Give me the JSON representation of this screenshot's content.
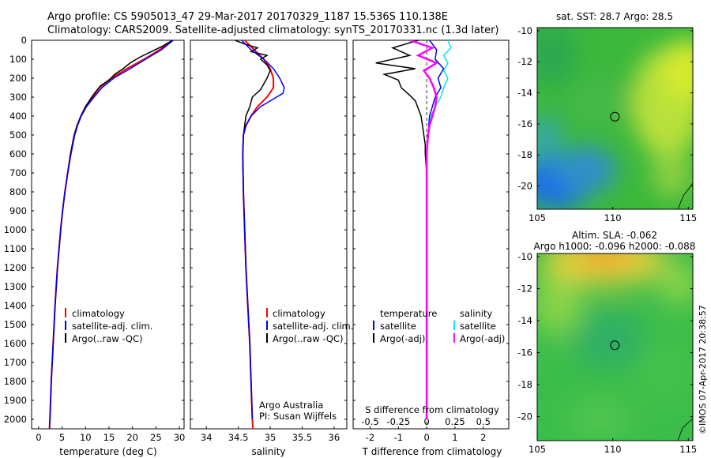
{
  "header": {
    "line1": "Argo profile: CS 5905013_47 29-Mar-2017 20170329_1187 15.536S 110.138E",
    "line2": "Climatology: CARS2009. Satellite-adjusted climatology: synTS_20170331.nc (1.3d later)"
  },
  "colors": {
    "climatology": "#ff0000",
    "satellite": "#0000ff",
    "argo": "#000000",
    "sat_salinity": "#00e5ee",
    "argo_salinity": "#ff00ff"
  },
  "depth_ticks": [
    "0",
    "100",
    "200",
    "300",
    "400",
    "500",
    "600",
    "700",
    "800",
    "900",
    "1000",
    "1100",
    "1200",
    "1300",
    "1400",
    "1500",
    "1600",
    "1700",
    "1800",
    "1900",
    "2000"
  ],
  "chart_data": [
    {
      "type": "line",
      "name": "temperature-profile",
      "xlabel": "temperature (deg C)",
      "x_ticks": [
        "0",
        "5",
        "10",
        "15",
        "20",
        "25",
        "30"
      ],
      "xlim": [
        -1.5,
        31
      ],
      "ylim": [
        2050,
        0
      ],
      "legend": [
        "climatology",
        "satellite-adj. clim.",
        "Argo(..raw -QC)"
      ],
      "series": [
        {
          "name": "climatology",
          "depth": [
            0,
            50,
            100,
            150,
            200,
            250,
            300,
            350,
            400,
            450,
            500,
            600,
            700,
            800,
            900,
            1000,
            1200,
            1400,
            1600,
            1800,
            2000,
            2050
          ],
          "values": [
            28.5,
            25.8,
            22.5,
            18.8,
            15.5,
            13.0,
            11.5,
            10.0,
            9.0,
            8.2,
            7.6,
            6.8,
            6.2,
            5.6,
            5.1,
            4.7,
            4.0,
            3.5,
            3.1,
            2.7,
            2.4,
            2.3
          ]
        },
        {
          "name": "satellite-adj. clim.",
          "depth": [
            0,
            50,
            100,
            150,
            200,
            250,
            300,
            350,
            400,
            450,
            500,
            600,
            700,
            800,
            900,
            1000,
            1200,
            1400,
            1600,
            1800,
            2000,
            2050
          ],
          "values": [
            28.7,
            26.2,
            22.8,
            19.5,
            16.0,
            13.5,
            11.8,
            10.2,
            9.1,
            8.3,
            7.7,
            6.9,
            6.2,
            5.6,
            5.1,
            4.7,
            4.0,
            3.5,
            3.1,
            2.7,
            2.4,
            2.3
          ]
        },
        {
          "name": "Argo(..raw -QC)",
          "depth": [
            0,
            30,
            60,
            90,
            120,
            150,
            180,
            210,
            240,
            270,
            300,
            350,
            400,
            450,
            500,
            600,
            700,
            800,
            900,
            1000,
            1200,
            1400,
            1600,
            1800,
            2000
          ],
          "values": [
            28.5,
            26.5,
            24.0,
            21.5,
            19.5,
            18.0,
            16.2,
            15.0,
            13.2,
            12.2,
            11.3,
            10.0,
            9.0,
            8.2,
            7.6,
            6.8,
            6.2,
            5.6,
            5.1,
            4.7,
            4.0,
            3.5,
            3.1,
            2.7,
            2.4
          ]
        }
      ]
    },
    {
      "type": "line",
      "name": "salinity-profile",
      "xlabel": "salinity",
      "x_ticks": [
        "34",
        "34.5",
        "35",
        "35.5",
        "36"
      ],
      "xlim": [
        33.75,
        36.2
      ],
      "ylim": [
        2050,
        0
      ],
      "legend": [
        "climatology",
        "satellite-adj. clim.",
        "Argo(..raw -QC)"
      ],
      "annotation": [
        "Argo Australia",
        "PI: Susan Wijffels"
      ],
      "series": [
        {
          "name": "climatology",
          "depth": [
            0,
            50,
            100,
            150,
            200,
            250,
            300,
            350,
            400,
            450,
            500,
            600,
            800,
            1000,
            1200,
            1400,
            1600,
            1800,
            2000,
            2050
          ],
          "values": [
            34.6,
            34.75,
            34.9,
            35.0,
            35.05,
            35.05,
            34.95,
            34.8,
            34.7,
            34.62,
            34.58,
            34.57,
            34.58,
            34.6,
            34.62,
            34.65,
            34.68,
            34.7,
            34.72,
            34.73
          ]
        },
        {
          "name": "satellite-adj. clim.",
          "depth": [
            0,
            50,
            100,
            150,
            200,
            250,
            280,
            300,
            350,
            400,
            450,
            500,
            600,
            800,
            1000,
            1200,
            1400,
            1600,
            1800,
            2000
          ],
          "values": [
            34.55,
            34.7,
            34.9,
            35.05,
            35.15,
            35.22,
            35.2,
            35.1,
            34.85,
            34.7,
            34.62,
            34.58,
            34.57,
            34.58,
            34.6,
            34.62,
            34.65,
            34.68,
            34.7,
            34.72
          ]
        },
        {
          "name": "Argo(..raw -QC)",
          "depth": [
            0,
            20,
            40,
            60,
            80,
            100,
            130,
            160,
            200,
            230,
            260,
            300,
            350,
            400,
            450,
            500,
            600,
            800,
            1000,
            1200,
            1400,
            1600,
            1800,
            2000
          ],
          "values": [
            34.45,
            34.6,
            34.8,
            34.7,
            34.95,
            34.85,
            34.95,
            35.0,
            34.95,
            34.9,
            34.85,
            34.72,
            34.68,
            34.62,
            34.6,
            34.58,
            34.57,
            34.58,
            34.6,
            34.62,
            34.65,
            34.68,
            34.7,
            34.72
          ]
        }
      ]
    },
    {
      "type": "line",
      "name": "difference-profile",
      "xlabel": "T difference from climatology",
      "x2label": "S difference from climatology",
      "x_ticks": [
        "-2",
        "-1",
        "0",
        "1",
        "2"
      ],
      "x2_ticks": [
        "-0.5",
        "-0.25",
        "0",
        "0.25",
        "0.5"
      ],
      "xlim": [
        -2.6,
        2.9
      ],
      "ylim": [
        2050,
        0
      ],
      "legend_temperature": [
        "temperature",
        "satellite",
        "Argo(-adj)"
      ],
      "legend_salinity": [
        "salinity",
        "satellite",
        "Argo(-adj)"
      ],
      "series": [
        {
          "name": "temperature satellite",
          "depth": [
            0,
            50,
            100,
            150,
            200,
            250,
            300,
            400,
            500,
            600,
            800,
            1000,
            1500,
            2000
          ],
          "values": [
            0.1,
            0.35,
            0.3,
            0.6,
            0.4,
            0.5,
            0.3,
            0.1,
            0.05,
            0.0,
            0.0,
            0.0,
            0.0,
            0.0
          ]
        },
        {
          "name": "temperature Argo(-adj)",
          "depth": [
            0,
            40,
            80,
            120,
            150,
            180,
            210,
            250,
            290,
            320,
            360,
            400,
            450,
            500,
            550,
            600,
            700,
            800,
            1000,
            1500,
            2000
          ],
          "values": [
            -0.3,
            -1.2,
            -0.6,
            -1.8,
            -0.4,
            -1.5,
            -1.0,
            -0.9,
            -0.6,
            -0.4,
            -0.3,
            -0.2,
            -0.15,
            -0.1,
            -0.05,
            -0.05,
            0.0,
            0.0,
            0.0,
            0.0,
            0.0
          ]
        },
        {
          "name": "salinity satellite",
          "depth": [
            0,
            40,
            80,
            120,
            160,
            200,
            250,
            300,
            350,
            400,
            500,
            600,
            800,
            1000,
            1500,
            2000
          ],
          "values": [
            0.75,
            0.85,
            0.6,
            0.75,
            0.6,
            0.75,
            0.6,
            0.5,
            0.3,
            0.15,
            0.05,
            0.0,
            0.0,
            0.0,
            0.0,
            0.0
          ]
        },
        {
          "name": "salinity Argo(-adj)",
          "depth": [
            0,
            40,
            80,
            120,
            160,
            200,
            250,
            300,
            350,
            400,
            450,
            500,
            600,
            800,
            1000,
            1500,
            2000
          ],
          "values": [
            -0.6,
            0.2,
            -0.3,
            0.35,
            -0.1,
            0.1,
            0.25,
            0.35,
            0.3,
            0.2,
            0.1,
            0.05,
            0.0,
            0.0,
            0.0,
            0.0,
            0.0
          ]
        }
      ]
    },
    {
      "type": "heatmap",
      "name": "sst-map",
      "title": "sat. SST: 28.7 Argo: 28.5",
      "x_ticks": [
        "105",
        "110",
        "115"
      ],
      "y_ticks": [
        "-10",
        "-12",
        "-14",
        "-16",
        "-18",
        "-20"
      ],
      "xlim": [
        105,
        115.3
      ],
      "ylim": [
        -21.5,
        -9.8
      ],
      "argo_position": {
        "lon": 110.138,
        "lat": -15.536
      }
    },
    {
      "type": "heatmap",
      "name": "sla-map",
      "title": "Altim. SLA: -0.062",
      "subtitle": "Argo h1000: -0.096 h2000: -0.088",
      "x_ticks": [
        "105",
        "110",
        "115"
      ],
      "y_ticks": [
        "-10",
        "-12",
        "-14",
        "-16",
        "-18",
        "-20"
      ],
      "xlim": [
        105,
        115.3
      ],
      "ylim": [
        -21.5,
        -9.8
      ],
      "argo_position": {
        "lon": 110.138,
        "lat": -15.536
      }
    }
  ],
  "footer": {
    "credit": "©IMOS 07-Apr-2017 20:38:57"
  }
}
